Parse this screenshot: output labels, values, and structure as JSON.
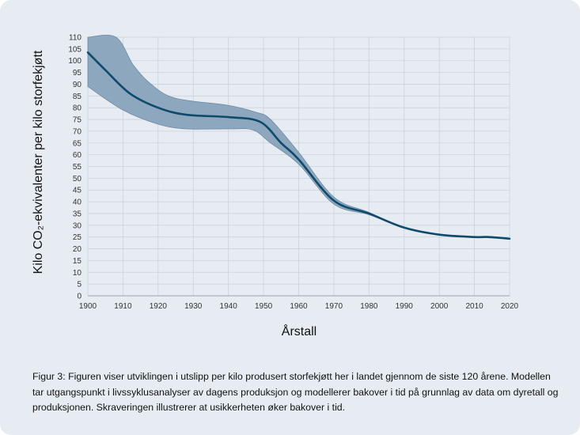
{
  "chart_data": {
    "type": "line",
    "title": "",
    "xlabel": "Årstall",
    "ylabel": "Kilo CO₂-ekvivalenter per kilo storfekjøtt",
    "xlim": [
      1900,
      2020
    ],
    "ylim": [
      0,
      110
    ],
    "xticks": [
      "1900",
      "1910",
      "1920",
      "1930",
      "1940",
      "1950",
      "1960",
      "1970",
      "1980",
      "1990",
      "2000",
      "2010",
      "2020"
    ],
    "yticks": [
      "0",
      "5",
      "10",
      "15",
      "20",
      "25",
      "30",
      "35",
      "40",
      "45",
      "50",
      "55",
      "60",
      "65",
      "70",
      "75",
      "80",
      "85",
      "90",
      "95",
      "100",
      "105",
      "110"
    ],
    "grid": true,
    "series": [
      {
        "values_x": [
          1900,
          1905,
          1912,
          1920,
          1928,
          1940,
          1949,
          1955,
          1960,
          1970,
          1980,
          1990,
          2000,
          2010,
          2014,
          2020
        ],
        "values_y": [
          103.5,
          96,
          86,
          80,
          77,
          76,
          74,
          65,
          58,
          40.5,
          35,
          29,
          26,
          25,
          25,
          24.3
        ],
        "color": "#0f4a6b"
      }
    ],
    "uncertainty_band": {
      "upper_x": [
        1900,
        1908,
        1913,
        1918,
        1925,
        1940,
        1948,
        1952,
        1960,
        1970,
        1980,
        1990,
        2000,
        2010,
        2020
      ],
      "upper_y": [
        110,
        110,
        98,
        90,
        84,
        81,
        78,
        75,
        61,
        42,
        35.5,
        29,
        26,
        25,
        24.3
      ],
      "lower_x": [
        1900,
        1910,
        1920,
        1928,
        1940,
        1947,
        1952,
        1960,
        1970,
        1980,
        1990,
        2000,
        2010,
        2020
      ],
      "lower_y": [
        89,
        79,
        73,
        71,
        71,
        70.5,
        65,
        56,
        39,
        34.5,
        29,
        26,
        25,
        24.3
      ],
      "color": "#8da7bf"
    }
  },
  "caption": "Figur 3: Figuren viser utviklingen i utslipp per kilo produsert storfekjøtt her i landet gjennom de siste 120 årene. Modellen tar utgangspunkt i livssyklusanalyser av dagens produksjon og modellerer bakover i tid på grunnlag av data om dyretall og produksjonen. Skraveringen illustrerer at usikkerheten øker bakover i tid."
}
